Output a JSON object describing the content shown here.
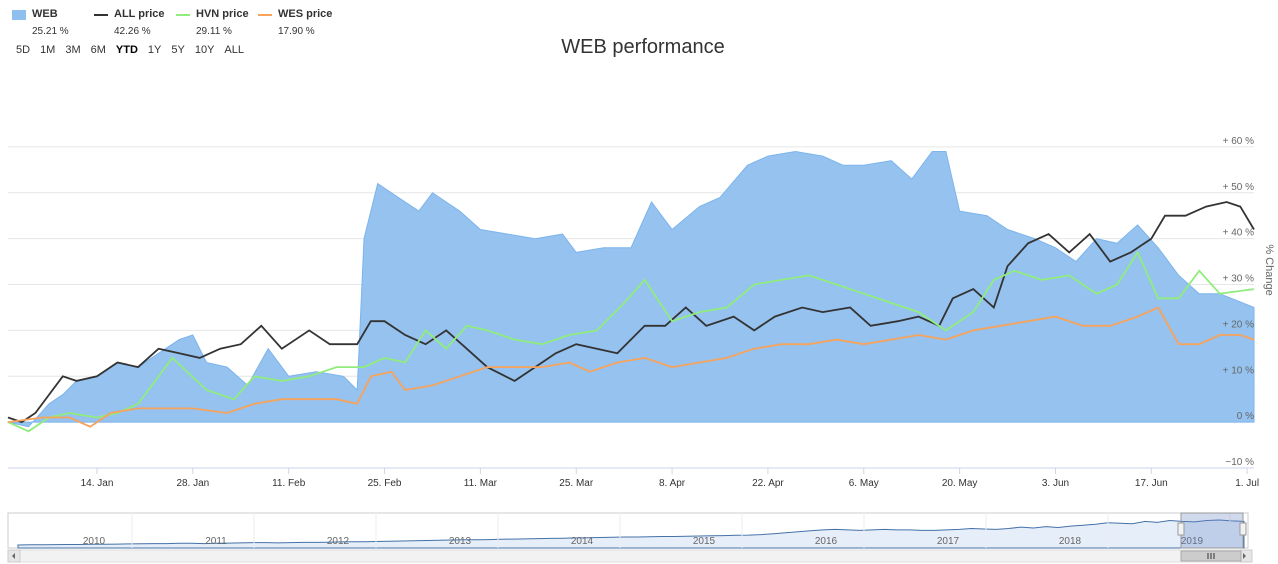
{
  "legend": [
    {
      "name": "WEB",
      "value": "25.21 %",
      "color": "#8fbfee",
      "kind": "area"
    },
    {
      "name": "ALL price",
      "value": "42.26 %",
      "color": "#333333",
      "kind": "line"
    },
    {
      "name": "HVN price",
      "value": "29.11 %",
      "color": "#90ed7d",
      "kind": "line"
    },
    {
      "name": "WES price",
      "value": "17.90 %",
      "color": "#f7a35c",
      "kind": "line"
    }
  ],
  "ranges": [
    "5D",
    "1M",
    "3M",
    "6M",
    "YTD",
    "1Y",
    "5Y",
    "10Y",
    "ALL"
  ],
  "active_range": "YTD",
  "chart_data": {
    "type": "area",
    "title": "WEB performance",
    "ylabel": "% Change",
    "ylim": [
      -10,
      65
    ],
    "yticks": [
      -10,
      0,
      10,
      20,
      30,
      40,
      50,
      60
    ],
    "ytick_labels": [
      "−10 %",
      "0 %",
      "+ 10 %",
      "+ 20 %",
      "+ 30 %",
      "+ 40 %",
      "+ 50 %",
      "+ 60 %"
    ],
    "x_start": "2019-01-01",
    "x_end": "2019-07-02",
    "xticks": [
      {
        "date": "2019-01-14",
        "label": "14. Jan"
      },
      {
        "date": "2019-01-28",
        "label": "28. Jan"
      },
      {
        "date": "2019-02-11",
        "label": "11. Feb"
      },
      {
        "date": "2019-02-25",
        "label": "25. Feb"
      },
      {
        "date": "2019-03-11",
        "label": "11. Mar"
      },
      {
        "date": "2019-03-25",
        "label": "25. Mar"
      },
      {
        "date": "2019-04-08",
        "label": "8. Apr"
      },
      {
        "date": "2019-04-22",
        "label": "22. Apr"
      },
      {
        "date": "2019-05-06",
        "label": "6. May"
      },
      {
        "date": "2019-05-20",
        "label": "20. May"
      },
      {
        "date": "2019-06-03",
        "label": "3. Jun"
      },
      {
        "date": "2019-06-17",
        "label": "17. Jun"
      },
      {
        "date": "2019-07-01",
        "label": "1. Jul"
      }
    ],
    "series": [
      {
        "name": "WEB",
        "type": "area",
        "color": "#8fbfee",
        "points": [
          [
            "2019-01-01",
            0
          ],
          [
            "2019-01-04",
            -1
          ],
          [
            "2019-01-07",
            4
          ],
          [
            "2019-01-09",
            6
          ],
          [
            "2019-01-11",
            9
          ],
          [
            "2019-01-14",
            10
          ],
          [
            "2019-01-17",
            13
          ],
          [
            "2019-01-20",
            12
          ],
          [
            "2019-01-23",
            15
          ],
          [
            "2019-01-26",
            18
          ],
          [
            "2019-01-28",
            19
          ],
          [
            "2019-01-30",
            13
          ],
          [
            "2019-02-02",
            12
          ],
          [
            "2019-02-05",
            8
          ],
          [
            "2019-02-08",
            16
          ],
          [
            "2019-02-11",
            10
          ],
          [
            "2019-02-15",
            11
          ],
          [
            "2019-02-19",
            10
          ],
          [
            "2019-02-21",
            7
          ],
          [
            "2019-02-22",
            40
          ],
          [
            "2019-02-24",
            52
          ],
          [
            "2019-02-27",
            49
          ],
          [
            "2019-03-02",
            46
          ],
          [
            "2019-03-04",
            50
          ],
          [
            "2019-03-08",
            46
          ],
          [
            "2019-03-11",
            42
          ],
          [
            "2019-03-15",
            41
          ],
          [
            "2019-03-19",
            40
          ],
          [
            "2019-03-23",
            41
          ],
          [
            "2019-03-25",
            37
          ],
          [
            "2019-03-29",
            38
          ],
          [
            "2019-04-02",
            38
          ],
          [
            "2019-04-05",
            48
          ],
          [
            "2019-04-08",
            42
          ],
          [
            "2019-04-12",
            47
          ],
          [
            "2019-04-15",
            49
          ],
          [
            "2019-04-19",
            56
          ],
          [
            "2019-04-22",
            58
          ],
          [
            "2019-04-26",
            59
          ],
          [
            "2019-04-30",
            58
          ],
          [
            "2019-05-03",
            56
          ],
          [
            "2019-05-06",
            56
          ],
          [
            "2019-05-10",
            57
          ],
          [
            "2019-05-13",
            53
          ],
          [
            "2019-05-16",
            59
          ],
          [
            "2019-05-18",
            59
          ],
          [
            "2019-05-20",
            46
          ],
          [
            "2019-05-24",
            45
          ],
          [
            "2019-05-27",
            42
          ],
          [
            "2019-05-31",
            40
          ],
          [
            "2019-06-03",
            38
          ],
          [
            "2019-06-06",
            35
          ],
          [
            "2019-06-09",
            40
          ],
          [
            "2019-06-12",
            39
          ],
          [
            "2019-06-15",
            43
          ],
          [
            "2019-06-18",
            38
          ],
          [
            "2019-06-21",
            32
          ],
          [
            "2019-06-24",
            28
          ],
          [
            "2019-06-27",
            28
          ],
          [
            "2019-07-02",
            25
          ]
        ]
      },
      {
        "name": "ALL price",
        "type": "line",
        "color": "#333333",
        "points": [
          [
            "2019-01-01",
            1
          ],
          [
            "2019-01-03",
            0
          ],
          [
            "2019-01-05",
            2
          ],
          [
            "2019-01-07",
            6
          ],
          [
            "2019-01-09",
            10
          ],
          [
            "2019-01-11",
            9
          ],
          [
            "2019-01-14",
            10
          ],
          [
            "2019-01-17",
            13
          ],
          [
            "2019-01-20",
            12
          ],
          [
            "2019-01-23",
            16
          ],
          [
            "2019-01-26",
            15
          ],
          [
            "2019-01-29",
            14
          ],
          [
            "2019-02-01",
            16
          ],
          [
            "2019-02-04",
            17
          ],
          [
            "2019-02-07",
            21
          ],
          [
            "2019-02-10",
            16
          ],
          [
            "2019-02-14",
            20
          ],
          [
            "2019-02-17",
            17
          ],
          [
            "2019-02-21",
            17
          ],
          [
            "2019-02-23",
            22
          ],
          [
            "2019-02-25",
            22
          ],
          [
            "2019-02-28",
            19
          ],
          [
            "2019-03-03",
            17
          ],
          [
            "2019-03-06",
            20
          ],
          [
            "2019-03-09",
            16
          ],
          [
            "2019-03-12",
            12
          ],
          [
            "2019-03-16",
            9
          ],
          [
            "2019-03-19",
            12
          ],
          [
            "2019-03-22",
            15
          ],
          [
            "2019-03-25",
            17
          ],
          [
            "2019-03-28",
            16
          ],
          [
            "2019-03-31",
            15
          ],
          [
            "2019-04-04",
            21
          ],
          [
            "2019-04-07",
            21
          ],
          [
            "2019-04-10",
            25
          ],
          [
            "2019-04-13",
            21
          ],
          [
            "2019-04-17",
            23
          ],
          [
            "2019-04-20",
            20
          ],
          [
            "2019-04-23",
            23
          ],
          [
            "2019-04-27",
            25
          ],
          [
            "2019-04-30",
            24
          ],
          [
            "2019-05-04",
            25
          ],
          [
            "2019-05-07",
            21
          ],
          [
            "2019-05-11",
            22
          ],
          [
            "2019-05-14",
            23
          ],
          [
            "2019-05-17",
            21
          ],
          [
            "2019-05-19",
            27
          ],
          [
            "2019-05-22",
            29
          ],
          [
            "2019-05-25",
            25
          ],
          [
            "2019-05-27",
            34
          ],
          [
            "2019-05-30",
            39
          ],
          [
            "2019-06-02",
            41
          ],
          [
            "2019-06-05",
            37
          ],
          [
            "2019-06-08",
            41
          ],
          [
            "2019-06-11",
            35
          ],
          [
            "2019-06-14",
            37
          ],
          [
            "2019-06-17",
            40
          ],
          [
            "2019-06-19",
            45
          ],
          [
            "2019-06-22",
            45
          ],
          [
            "2019-06-25",
            47
          ],
          [
            "2019-06-28",
            48
          ],
          [
            "2019-06-30",
            47
          ],
          [
            "2019-07-02",
            42
          ]
        ]
      },
      {
        "name": "HVN price",
        "type": "line",
        "color": "#90ed7d",
        "points": [
          [
            "2019-01-01",
            0
          ],
          [
            "2019-01-04",
            -2
          ],
          [
            "2019-01-07",
            1
          ],
          [
            "2019-01-10",
            2
          ],
          [
            "2019-01-14",
            1
          ],
          [
            "2019-01-17",
            2
          ],
          [
            "2019-01-20",
            4
          ],
          [
            "2019-01-25",
            14
          ],
          [
            "2019-01-30",
            7
          ],
          [
            "2019-02-03",
            5
          ],
          [
            "2019-02-06",
            10
          ],
          [
            "2019-02-10",
            9
          ],
          [
            "2019-02-14",
            10
          ],
          [
            "2019-02-18",
            12
          ],
          [
            "2019-02-22",
            12
          ],
          [
            "2019-02-25",
            14
          ],
          [
            "2019-02-28",
            13
          ],
          [
            "2019-03-03",
            20
          ],
          [
            "2019-03-06",
            16
          ],
          [
            "2019-03-09",
            21
          ],
          [
            "2019-03-12",
            20
          ],
          [
            "2019-03-16",
            18
          ],
          [
            "2019-03-20",
            17
          ],
          [
            "2019-03-24",
            19
          ],
          [
            "2019-03-28",
            20
          ],
          [
            "2019-04-01",
            26
          ],
          [
            "2019-04-04",
            31
          ],
          [
            "2019-04-08",
            22
          ],
          [
            "2019-04-12",
            24
          ],
          [
            "2019-04-16",
            25
          ],
          [
            "2019-04-20",
            30
          ],
          [
            "2019-04-24",
            31
          ],
          [
            "2019-04-28",
            32
          ],
          [
            "2019-05-02",
            30
          ],
          [
            "2019-05-06",
            28
          ],
          [
            "2019-05-10",
            26
          ],
          [
            "2019-05-14",
            24
          ],
          [
            "2019-05-18",
            20
          ],
          [
            "2019-05-22",
            24
          ],
          [
            "2019-05-25",
            31
          ],
          [
            "2019-05-28",
            33
          ],
          [
            "2019-06-01",
            31
          ],
          [
            "2019-06-05",
            32
          ],
          [
            "2019-06-09",
            28
          ],
          [
            "2019-06-12",
            30
          ],
          [
            "2019-06-15",
            37
          ],
          [
            "2019-06-18",
            27
          ],
          [
            "2019-06-21",
            27
          ],
          [
            "2019-06-24",
            33
          ],
          [
            "2019-06-27",
            28
          ],
          [
            "2019-07-02",
            29
          ]
        ]
      },
      {
        "name": "WES price",
        "type": "line",
        "color": "#f7a35c",
        "points": [
          [
            "2019-01-01",
            0
          ],
          [
            "2019-01-06",
            1
          ],
          [
            "2019-01-10",
            1
          ],
          [
            "2019-01-13",
            -1
          ],
          [
            "2019-01-16",
            2
          ],
          [
            "2019-01-20",
            3
          ],
          [
            "2019-01-24",
            3
          ],
          [
            "2019-01-28",
            3
          ],
          [
            "2019-02-02",
            2
          ],
          [
            "2019-02-06",
            4
          ],
          [
            "2019-02-10",
            5
          ],
          [
            "2019-02-14",
            5
          ],
          [
            "2019-02-18",
            5
          ],
          [
            "2019-02-21",
            4
          ],
          [
            "2019-02-23",
            10
          ],
          [
            "2019-02-26",
            11
          ],
          [
            "2019-02-28",
            7
          ],
          [
            "2019-03-04",
            8
          ],
          [
            "2019-03-08",
            10
          ],
          [
            "2019-03-12",
            12
          ],
          [
            "2019-03-16",
            12
          ],
          [
            "2019-03-20",
            12
          ],
          [
            "2019-03-24",
            13
          ],
          [
            "2019-03-27",
            11
          ],
          [
            "2019-03-31",
            13
          ],
          [
            "2019-04-04",
            14
          ],
          [
            "2019-04-08",
            12
          ],
          [
            "2019-04-12",
            13
          ],
          [
            "2019-04-16",
            14
          ],
          [
            "2019-04-20",
            16
          ],
          [
            "2019-04-24",
            17
          ],
          [
            "2019-04-28",
            17
          ],
          [
            "2019-05-02",
            18
          ],
          [
            "2019-05-06",
            17
          ],
          [
            "2019-05-10",
            18
          ],
          [
            "2019-05-14",
            19
          ],
          [
            "2019-05-18",
            18
          ],
          [
            "2019-05-22",
            20
          ],
          [
            "2019-05-26",
            21
          ],
          [
            "2019-05-30",
            22
          ],
          [
            "2019-06-03",
            23
          ],
          [
            "2019-06-07",
            21
          ],
          [
            "2019-06-11",
            21
          ],
          [
            "2019-06-15",
            23
          ],
          [
            "2019-06-18",
            25
          ],
          [
            "2019-06-21",
            17
          ],
          [
            "2019-06-24",
            17
          ],
          [
            "2019-06-27",
            19
          ],
          [
            "2019-06-30",
            19
          ],
          [
            "2019-07-02",
            18
          ]
        ]
      }
    ]
  },
  "navigator": {
    "years": [
      "2010",
      "2011",
      "2012",
      "2013",
      "2014",
      "2015",
      "2016",
      "2017",
      "2018",
      "2019"
    ],
    "values": [
      0,
      0.5,
      0.4,
      0.8,
      1,
      1,
      1.5,
      1.5,
      2,
      2.3,
      2.5,
      3,
      3,
      3.5,
      3.8,
      3,
      3.8,
      4,
      4.5,
      5,
      5,
      4.5,
      5,
      5.5,
      5.5,
      6,
      6.5,
      7,
      7,
      7.5,
      8,
      8.5,
      9,
      9.5,
      10,
      10.5,
      11,
      11,
      11.5,
      12,
      12.5,
      13,
      13.5,
      14,
      14.5,
      15,
      15.5,
      16,
      16.5,
      17,
      17,
      17.5,
      18,
      18,
      18.5,
      19,
      19.5,
      20,
      20.5,
      21,
      22,
      24,
      26,
      28,
      30,
      32,
      33,
      32,
      31,
      32,
      33,
      32,
      32,
      31,
      31,
      32,
      33,
      35,
      34,
      33,
      35,
      38,
      36,
      39,
      37,
      40,
      42,
      44,
      47,
      46,
      45,
      50,
      48,
      52,
      50,
      49,
      52,
      53,
      51,
      50
    ]
  }
}
